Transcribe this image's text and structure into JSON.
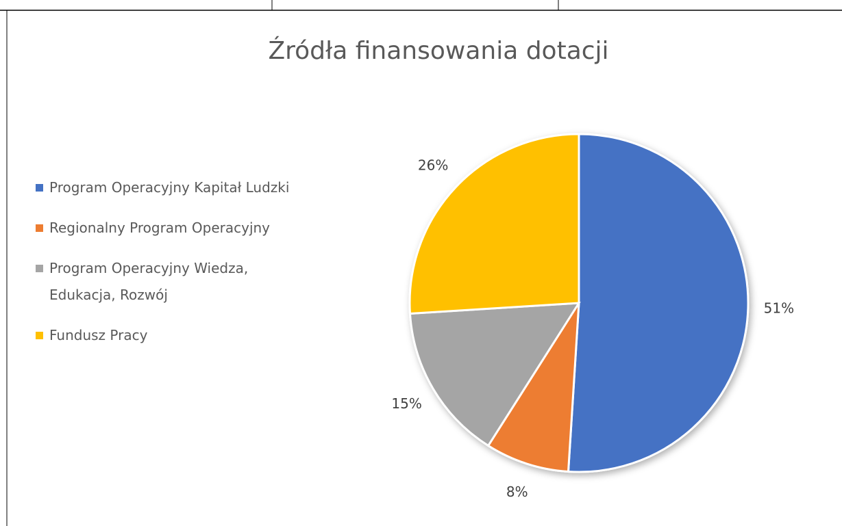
{
  "chart_data": {
    "type": "pie",
    "title": "Źródła finansowania dotacji",
    "categories": [
      "Program Operacyjny Kapitał Ludzki",
      "Regionalny Program Operacyjny",
      "Program Operacyjny Wiedza, Edukacja, Rozwój",
      "Fundusz Pracy"
    ],
    "values": [
      51,
      8,
      15,
      26
    ],
    "value_labels": [
      "51%",
      "8%",
      "15%",
      "26%"
    ],
    "colors": [
      "#4472c4",
      "#ed7d31",
      "#a5a5a5",
      "#ffc000"
    ],
    "legend": "left"
  }
}
